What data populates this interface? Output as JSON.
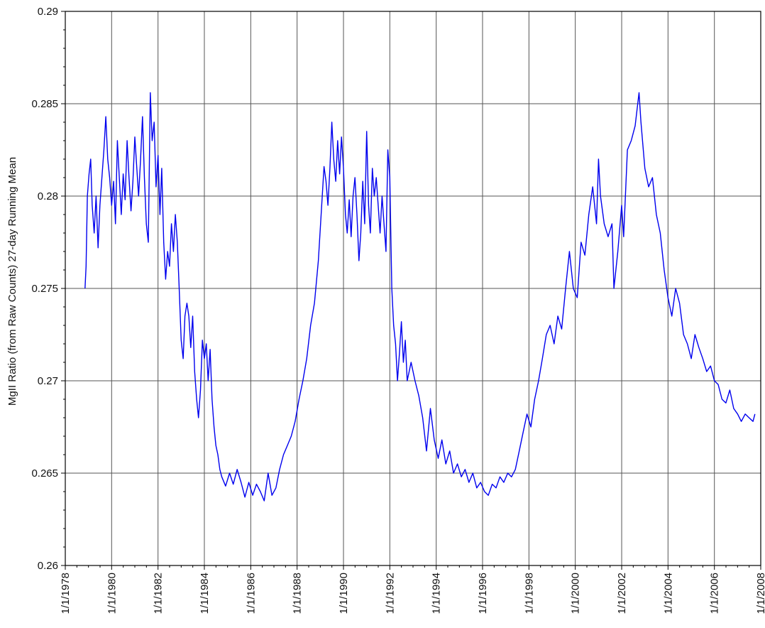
{
  "chart_data": {
    "type": "line",
    "title": "",
    "xlabel": "",
    "ylabel": "MgII Ratio (from Raw Counts) 27-day Running Mean",
    "xlim": [
      "1978-01-01",
      "2008-01-01"
    ],
    "ylim": [
      0.26,
      0.29
    ],
    "grid": true,
    "x_tick_labels": [
      "1/1/1978",
      "1/1/1980",
      "1/1/1982",
      "1/1/1984",
      "1/1/1986",
      "1/1/1988",
      "1/1/1990",
      "1/1/1992",
      "1/1/1994",
      "1/1/1996",
      "1/1/1998",
      "1/1/2000",
      "1/1/2002",
      "1/1/2004",
      "1/1/2006",
      "1/1/2008"
    ],
    "y_tick_labels": [
      "0.26",
      "0.265",
      "0.27",
      "0.275",
      "0.28",
      "0.285",
      "0.29"
    ],
    "series": [
      {
        "color": "#0000ee",
        "points": [
          [
            "1978-11-08",
            0.275
          ],
          [
            "1978-11-25",
            0.2762
          ],
          [
            "1978-12-15",
            0.28
          ],
          [
            "1979-01-10",
            0.2812
          ],
          [
            "1979-02-05",
            0.282
          ],
          [
            "1979-03-01",
            0.2795
          ],
          [
            "1979-04-01",
            0.278
          ],
          [
            "1979-05-01",
            0.28
          ],
          [
            "1979-06-01",
            0.2772
          ],
          [
            "1979-07-01",
            0.2795
          ],
          [
            "1979-08-01",
            0.281
          ],
          [
            "1979-09-01",
            0.2825
          ],
          [
            "1979-10-01",
            0.2843
          ],
          [
            "1979-11-01",
            0.282
          ],
          [
            "1979-12-01",
            0.281
          ],
          [
            "1980-01-01",
            0.2795
          ],
          [
            "1980-02-01",
            0.2808
          ],
          [
            "1980-03-01",
            0.2785
          ],
          [
            "1980-04-01",
            0.283
          ],
          [
            "1980-05-01",
            0.281
          ],
          [
            "1980-06-01",
            0.279
          ],
          [
            "1980-07-01",
            0.2812
          ],
          [
            "1980-08-01",
            0.2798
          ],
          [
            "1980-09-01",
            0.283
          ],
          [
            "1980-10-01",
            0.281
          ],
          [
            "1980-11-01",
            0.2792
          ],
          [
            "1980-12-01",
            0.2808
          ],
          [
            "1981-01-01",
            0.2832
          ],
          [
            "1981-02-01",
            0.2815
          ],
          [
            "1981-03-01",
            0.28
          ],
          [
            "1981-04-01",
            0.282
          ],
          [
            "1981-05-01",
            0.2843
          ],
          [
            "1981-06-01",
            0.281
          ],
          [
            "1981-07-01",
            0.2785
          ],
          [
            "1981-08-01",
            0.2775
          ],
          [
            "1981-09-01",
            0.2856
          ],
          [
            "1981-10-01",
            0.283
          ],
          [
            "1981-11-01",
            0.284
          ],
          [
            "1981-12-01",
            0.2805
          ],
          [
            "1982-01-01",
            0.2822
          ],
          [
            "1982-02-01",
            0.279
          ],
          [
            "1982-03-01",
            0.2815
          ],
          [
            "1982-04-01",
            0.2775
          ],
          [
            "1982-05-01",
            0.2755
          ],
          [
            "1982-06-01",
            0.277
          ],
          [
            "1982-07-01",
            0.2762
          ],
          [
            "1982-08-01",
            0.2785
          ],
          [
            "1982-09-01",
            0.277
          ],
          [
            "1982-10-01",
            0.279
          ],
          [
            "1982-11-01",
            0.2775
          ],
          [
            "1982-12-01",
            0.275
          ],
          [
            "1983-01-01",
            0.2722
          ],
          [
            "1983-02-01",
            0.2712
          ],
          [
            "1983-03-01",
            0.2735
          ],
          [
            "1983-04-01",
            0.2742
          ],
          [
            "1983-05-01",
            0.2735
          ],
          [
            "1983-06-01",
            0.2718
          ],
          [
            "1983-07-01",
            0.2735
          ],
          [
            "1983-08-01",
            0.2705
          ],
          [
            "1983-09-01",
            0.269
          ],
          [
            "1983-10-01",
            0.268
          ],
          [
            "1983-11-01",
            0.2695
          ],
          [
            "1983-12-01",
            0.2722
          ],
          [
            "1984-01-01",
            0.2712
          ],
          [
            "1984-02-01",
            0.272
          ],
          [
            "1984-03-01",
            0.27
          ],
          [
            "1984-04-01",
            0.2717
          ],
          [
            "1984-05-01",
            0.269
          ],
          [
            "1984-06-01",
            0.2675
          ],
          [
            "1984-07-01",
            0.2665
          ],
          [
            "1984-08-01",
            0.266
          ],
          [
            "1984-09-01",
            0.2652
          ],
          [
            "1984-10-01",
            0.2648
          ],
          [
            "1984-12-01",
            0.2643
          ],
          [
            "1985-02-01",
            0.265
          ],
          [
            "1985-04-01",
            0.2644
          ],
          [
            "1985-06-01",
            0.2652
          ],
          [
            "1985-08-01",
            0.2645
          ],
          [
            "1985-10-01",
            0.2637
          ],
          [
            "1985-12-01",
            0.2645
          ],
          [
            "1986-02-01",
            0.2638
          ],
          [
            "1986-04-01",
            0.2644
          ],
          [
            "1986-06-01",
            0.264
          ],
          [
            "1986-08-01",
            0.2635
          ],
          [
            "1986-10-01",
            0.265
          ],
          [
            "1986-12-01",
            0.2638
          ],
          [
            "1987-02-01",
            0.2642
          ],
          [
            "1987-04-01",
            0.2652
          ],
          [
            "1987-06-01",
            0.266
          ],
          [
            "1987-08-01",
            0.2665
          ],
          [
            "1987-10-01",
            0.267
          ],
          [
            "1987-12-01",
            0.2678
          ],
          [
            "1988-02-01",
            0.269
          ],
          [
            "1988-04-01",
            0.27
          ],
          [
            "1988-06-01",
            0.2712
          ],
          [
            "1988-08-01",
            0.273
          ],
          [
            "1988-10-01",
            0.2742
          ],
          [
            "1988-12-01",
            0.2765
          ],
          [
            "1989-02-01",
            0.28
          ],
          [
            "1989-03-01",
            0.2816
          ],
          [
            "1989-04-01",
            0.2808
          ],
          [
            "1989-05-01",
            0.2795
          ],
          [
            "1989-06-01",
            0.2815
          ],
          [
            "1989-07-01",
            0.284
          ],
          [
            "1989-08-01",
            0.282
          ],
          [
            "1989-09-01",
            0.2808
          ],
          [
            "1989-10-01",
            0.283
          ],
          [
            "1989-11-01",
            0.2812
          ],
          [
            "1989-12-01",
            0.2832
          ],
          [
            "1990-01-01",
            0.2815
          ],
          [
            "1990-02-01",
            0.279
          ],
          [
            "1990-03-01",
            0.278
          ],
          [
            "1990-04-01",
            0.2798
          ],
          [
            "1990-05-01",
            0.2778
          ],
          [
            "1990-06-01",
            0.28
          ],
          [
            "1990-07-01",
            0.281
          ],
          [
            "1990-08-01",
            0.279
          ],
          [
            "1990-09-01",
            0.2765
          ],
          [
            "1990-10-01",
            0.278
          ],
          [
            "1990-11-01",
            0.2808
          ],
          [
            "1990-12-01",
            0.2785
          ],
          [
            "1991-01-01",
            0.2835
          ],
          [
            "1991-02-01",
            0.2795
          ],
          [
            "1991-03-01",
            0.278
          ],
          [
            "1991-04-01",
            0.2815
          ],
          [
            "1991-05-01",
            0.28
          ],
          [
            "1991-06-01",
            0.281
          ],
          [
            "1991-07-01",
            0.2795
          ],
          [
            "1991-08-01",
            0.278
          ],
          [
            "1991-09-01",
            0.28
          ],
          [
            "1991-10-01",
            0.2785
          ],
          [
            "1991-11-01",
            0.277
          ],
          [
            "1991-12-01",
            0.2825
          ],
          [
            "1992-01-01",
            0.281
          ],
          [
            "1992-02-01",
            0.275
          ],
          [
            "1992-03-01",
            0.273
          ],
          [
            "1992-04-01",
            0.272
          ],
          [
            "1992-05-01",
            0.27
          ],
          [
            "1992-06-01",
            0.2715
          ],
          [
            "1992-07-01",
            0.2732
          ],
          [
            "1992-08-01",
            0.271
          ],
          [
            "1992-09-01",
            0.2722
          ],
          [
            "1992-10-01",
            0.27
          ],
          [
            "1992-12-01",
            0.271
          ],
          [
            "1993-02-01",
            0.27
          ],
          [
            "1993-04-01",
            0.2692
          ],
          [
            "1993-06-01",
            0.268
          ],
          [
            "1993-08-01",
            0.2662
          ],
          [
            "1993-10-01",
            0.2685
          ],
          [
            "1993-12-01",
            0.2668
          ],
          [
            "1994-02-01",
            0.2658
          ],
          [
            "1994-04-01",
            0.2668
          ],
          [
            "1994-06-01",
            0.2655
          ],
          [
            "1994-08-01",
            0.2662
          ],
          [
            "1994-10-01",
            0.265
          ],
          [
            "1994-12-01",
            0.2655
          ],
          [
            "1995-02-01",
            0.2648
          ],
          [
            "1995-04-01",
            0.2652
          ],
          [
            "1995-06-01",
            0.2645
          ],
          [
            "1995-08-01",
            0.265
          ],
          [
            "1995-10-01",
            0.2642
          ],
          [
            "1995-12-01",
            0.2645
          ],
          [
            "1996-02-01",
            0.264
          ],
          [
            "1996-04-01",
            0.2638
          ],
          [
            "1996-06-01",
            0.2644
          ],
          [
            "1996-08-01",
            0.2642
          ],
          [
            "1996-10-01",
            0.2648
          ],
          [
            "1996-12-01",
            0.2645
          ],
          [
            "1997-02-01",
            0.265
          ],
          [
            "1997-04-01",
            0.2648
          ],
          [
            "1997-06-01",
            0.2652
          ],
          [
            "1997-08-01",
            0.2662
          ],
          [
            "1997-10-01",
            0.2672
          ],
          [
            "1997-12-01",
            0.2682
          ],
          [
            "1998-02-01",
            0.2675
          ],
          [
            "1998-04-01",
            0.269
          ],
          [
            "1998-06-01",
            0.27
          ],
          [
            "1998-08-01",
            0.2712
          ],
          [
            "1998-10-01",
            0.2725
          ],
          [
            "1998-12-01",
            0.273
          ],
          [
            "1999-02-01",
            0.272
          ],
          [
            "1999-04-01",
            0.2735
          ],
          [
            "1999-06-01",
            0.2728
          ],
          [
            "1999-08-01",
            0.275
          ],
          [
            "1999-10-01",
            0.277
          ],
          [
            "1999-12-01",
            0.275
          ],
          [
            "2000-02-01",
            0.2745
          ],
          [
            "2000-04-01",
            0.2775
          ],
          [
            "2000-06-01",
            0.2768
          ],
          [
            "2000-08-01",
            0.279
          ],
          [
            "2000-10-01",
            0.2805
          ],
          [
            "2000-12-01",
            0.2785
          ],
          [
            "2001-01-01",
            0.282
          ],
          [
            "2001-02-01",
            0.28
          ],
          [
            "2001-04-01",
            0.2785
          ],
          [
            "2001-06-01",
            0.2778
          ],
          [
            "2001-08-01",
            0.2785
          ],
          [
            "2001-09-01",
            0.275
          ],
          [
            "2001-11-01",
            0.277
          ],
          [
            "2002-01-01",
            0.2795
          ],
          [
            "2002-02-01",
            0.2778
          ],
          [
            "2002-04-01",
            0.2825
          ],
          [
            "2002-06-01",
            0.283
          ],
          [
            "2002-08-01",
            0.2838
          ],
          [
            "2002-10-01",
            0.2856
          ],
          [
            "2002-11-01",
            0.284
          ],
          [
            "2003-01-01",
            0.2815
          ],
          [
            "2003-03-01",
            0.2805
          ],
          [
            "2003-05-01",
            0.281
          ],
          [
            "2003-07-01",
            0.279
          ],
          [
            "2003-09-01",
            0.278
          ],
          [
            "2003-11-01",
            0.276
          ],
          [
            "2004-01-01",
            0.2745
          ],
          [
            "2004-03-01",
            0.2735
          ],
          [
            "2004-05-01",
            0.275
          ],
          [
            "2004-07-01",
            0.2742
          ],
          [
            "2004-09-01",
            0.2725
          ],
          [
            "2004-11-01",
            0.272
          ],
          [
            "2005-01-01",
            0.2712
          ],
          [
            "2005-03-01",
            0.2725
          ],
          [
            "2005-05-01",
            0.2718
          ],
          [
            "2005-07-01",
            0.2712
          ],
          [
            "2005-09-01",
            0.2705
          ],
          [
            "2005-11-01",
            0.2708
          ],
          [
            "2006-01-01",
            0.27
          ],
          [
            "2006-03-01",
            0.2698
          ],
          [
            "2006-05-01",
            0.269
          ],
          [
            "2006-07-01",
            0.2688
          ],
          [
            "2006-09-01",
            0.2695
          ],
          [
            "2006-11-01",
            0.2685
          ],
          [
            "2007-01-01",
            0.2682
          ],
          [
            "2007-03-01",
            0.2678
          ],
          [
            "2007-05-01",
            0.2682
          ],
          [
            "2007-07-01",
            0.268
          ],
          [
            "2007-09-01",
            0.2678
          ],
          [
            "2007-10-01",
            0.2682
          ]
        ]
      }
    ]
  }
}
